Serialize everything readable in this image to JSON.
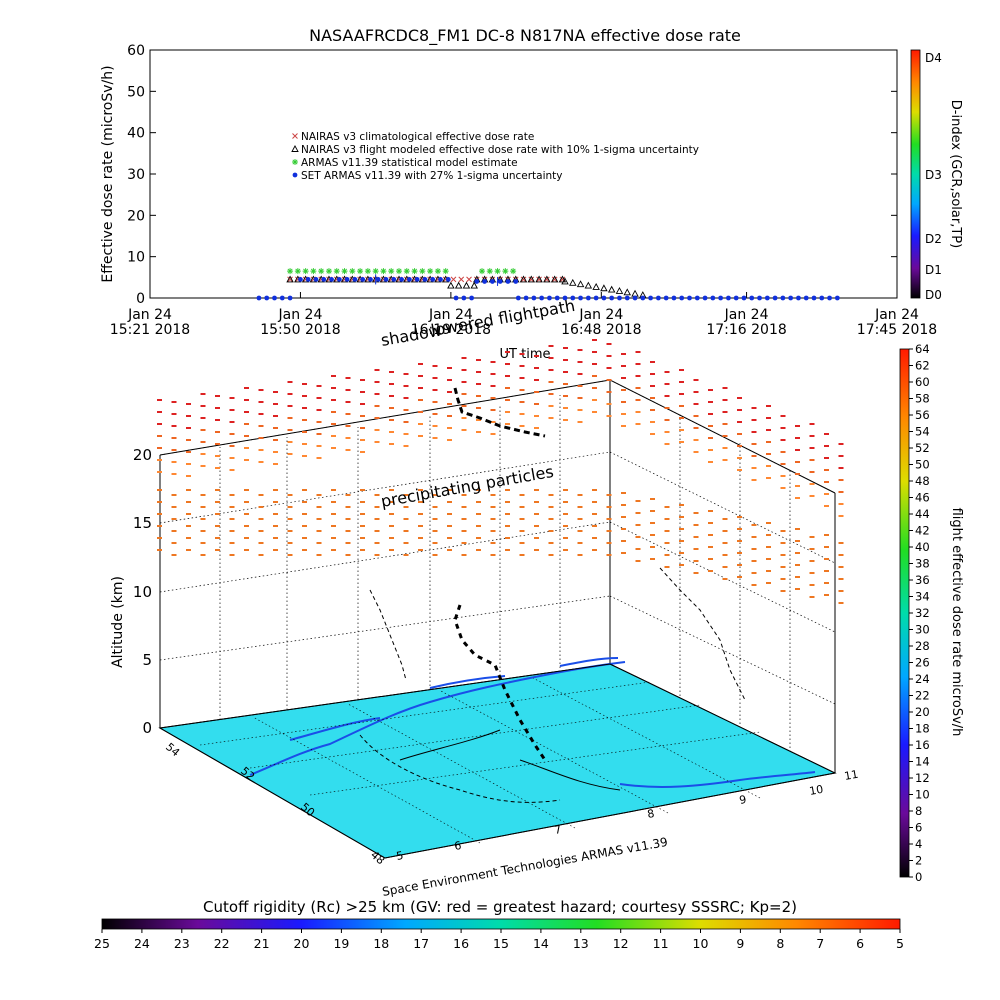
{
  "chart_data": [
    {
      "type": "scatter",
      "title": "NASAAFRCDC8_FM1 DC-8    N817NA effective dose rate",
      "xlabel": "UT time",
      "ylabel": "Effective dose rate  (microSv/h)",
      "ylim": [
        0,
        60
      ],
      "yticks": [
        0,
        10,
        20,
        30,
        40,
        50,
        60
      ],
      "xticks": [
        {
          "l1": "Jan 24",
          "l2": "15:21 2018",
          "t": 0
        },
        {
          "l1": "Jan 24",
          "l2": "15:50 2018",
          "t": 29
        },
        {
          "l1": "Jan 24",
          "l2": "16:19 2018",
          "t": 58
        },
        {
          "l1": "Jan 24",
          "l2": "16:48 2018",
          "t": 87
        },
        {
          "l1": "Jan 24",
          "l2": "17:16 2018",
          "t": 115
        },
        {
          "l1": "Jan 24",
          "l2": "17:45 2018",
          "t": 144
        }
      ],
      "legend": [
        {
          "name": "NAIRAS v3 climatological effective dose rate",
          "color": "#cc4444",
          "marker": "x"
        },
        {
          "name": "NAIRAS v3 flight modeled effective dose rate with 10% 1-sigma uncertainty",
          "color": "#000000",
          "marker": "triangle"
        },
        {
          "name": "ARMAS v11.39 statistical model estimate",
          "color": "#33cc33",
          "marker": "asterisk"
        },
        {
          "name": "SET ARMAS v11.39 with 27% 1-sigma uncertainty",
          "color": "#1030dd",
          "marker": "dot"
        }
      ],
      "legend_position": "upper-left",
      "series": [
        {
          "name": "NAIRAS v3 climatological effective dose rate",
          "segments": [
            {
              "t0": 27,
              "t1": 80,
              "v": 4.5
            }
          ]
        },
        {
          "name": "NAIRAS v3 flight modeled effective dose rate with 10% 1-sigma uncertainty",
          "segments": [
            {
              "t0": 27,
              "t1": 58,
              "v": 4.5
            },
            {
              "t0": 58,
              "t1": 63,
              "v": 3.0
            },
            {
              "t0": 63,
              "t1": 80,
              "v": 4.5
            }
          ],
          "decay": {
            "t0": 80,
            "t1": 96,
            "v0": 4.0,
            "v1": 0.5
          }
        },
        {
          "name": "ARMAS v11.39 statistical model estimate",
          "segments": [
            {
              "t0": 27,
              "t1": 58,
              "v": 6.5
            },
            {
              "t0": 64,
              "t1": 71,
              "v": 6.5
            }
          ]
        },
        {
          "name": "SET ARMAS v11.39 with 27% 1-sigma uncertainty",
          "segments": [
            {
              "t0": 21,
              "t1": 28,
              "v": 0
            },
            {
              "t0": 29,
              "t1": 58,
              "v": 4.5
            },
            {
              "t0": 59,
              "t1": 63,
              "v": 0
            },
            {
              "t0": 63,
              "t1": 71,
              "v": 4.0
            },
            {
              "t0": 71,
              "t1": 133,
              "v": 0
            }
          ]
        }
      ],
      "right_colorbar": {
        "label": "D-index (GCR,solar,TP)",
        "ticks": [
          "D0",
          "D1",
          "D2",
          "D3",
          "D4"
        ]
      }
    },
    {
      "type": "scatter",
      "title": "",
      "annotations": [
        "shadow",
        "lowered flightpath",
        "precipitating particles",
        "Space Environment Technologies ARMAS v11.39"
      ],
      "zlabel": "Altitude (km)",
      "zticks": [
        0,
        5,
        10,
        15,
        20
      ],
      "lat_ticks": [
        48,
        50,
        52,
        54
      ],
      "lon_ticks": [
        5,
        6,
        7,
        8,
        9,
        10,
        11
      ],
      "right_colorbar": {
        "label": "flight effective dose rate microSv/h",
        "ticks": [
          0,
          2,
          4,
          6,
          8,
          10,
          12,
          14,
          16,
          18,
          20,
          22,
          24,
          26,
          28,
          30,
          32,
          34,
          36,
          38,
          40,
          42,
          44,
          46,
          48,
          50,
          52,
          54,
          56,
          58,
          60,
          62,
          64
        ]
      },
      "bottom_colorbar": {
        "label": "Cutoff rigidity (Rc) >25 km (GV: red = greatest hazard; courtesy SSSRC; Kp=2)",
        "ticks": [
          25,
          24,
          23,
          22,
          21,
          20,
          19,
          18,
          17,
          16,
          15,
          14,
          13,
          12,
          11,
          10,
          9,
          8,
          7,
          6,
          5
        ]
      }
    }
  ]
}
